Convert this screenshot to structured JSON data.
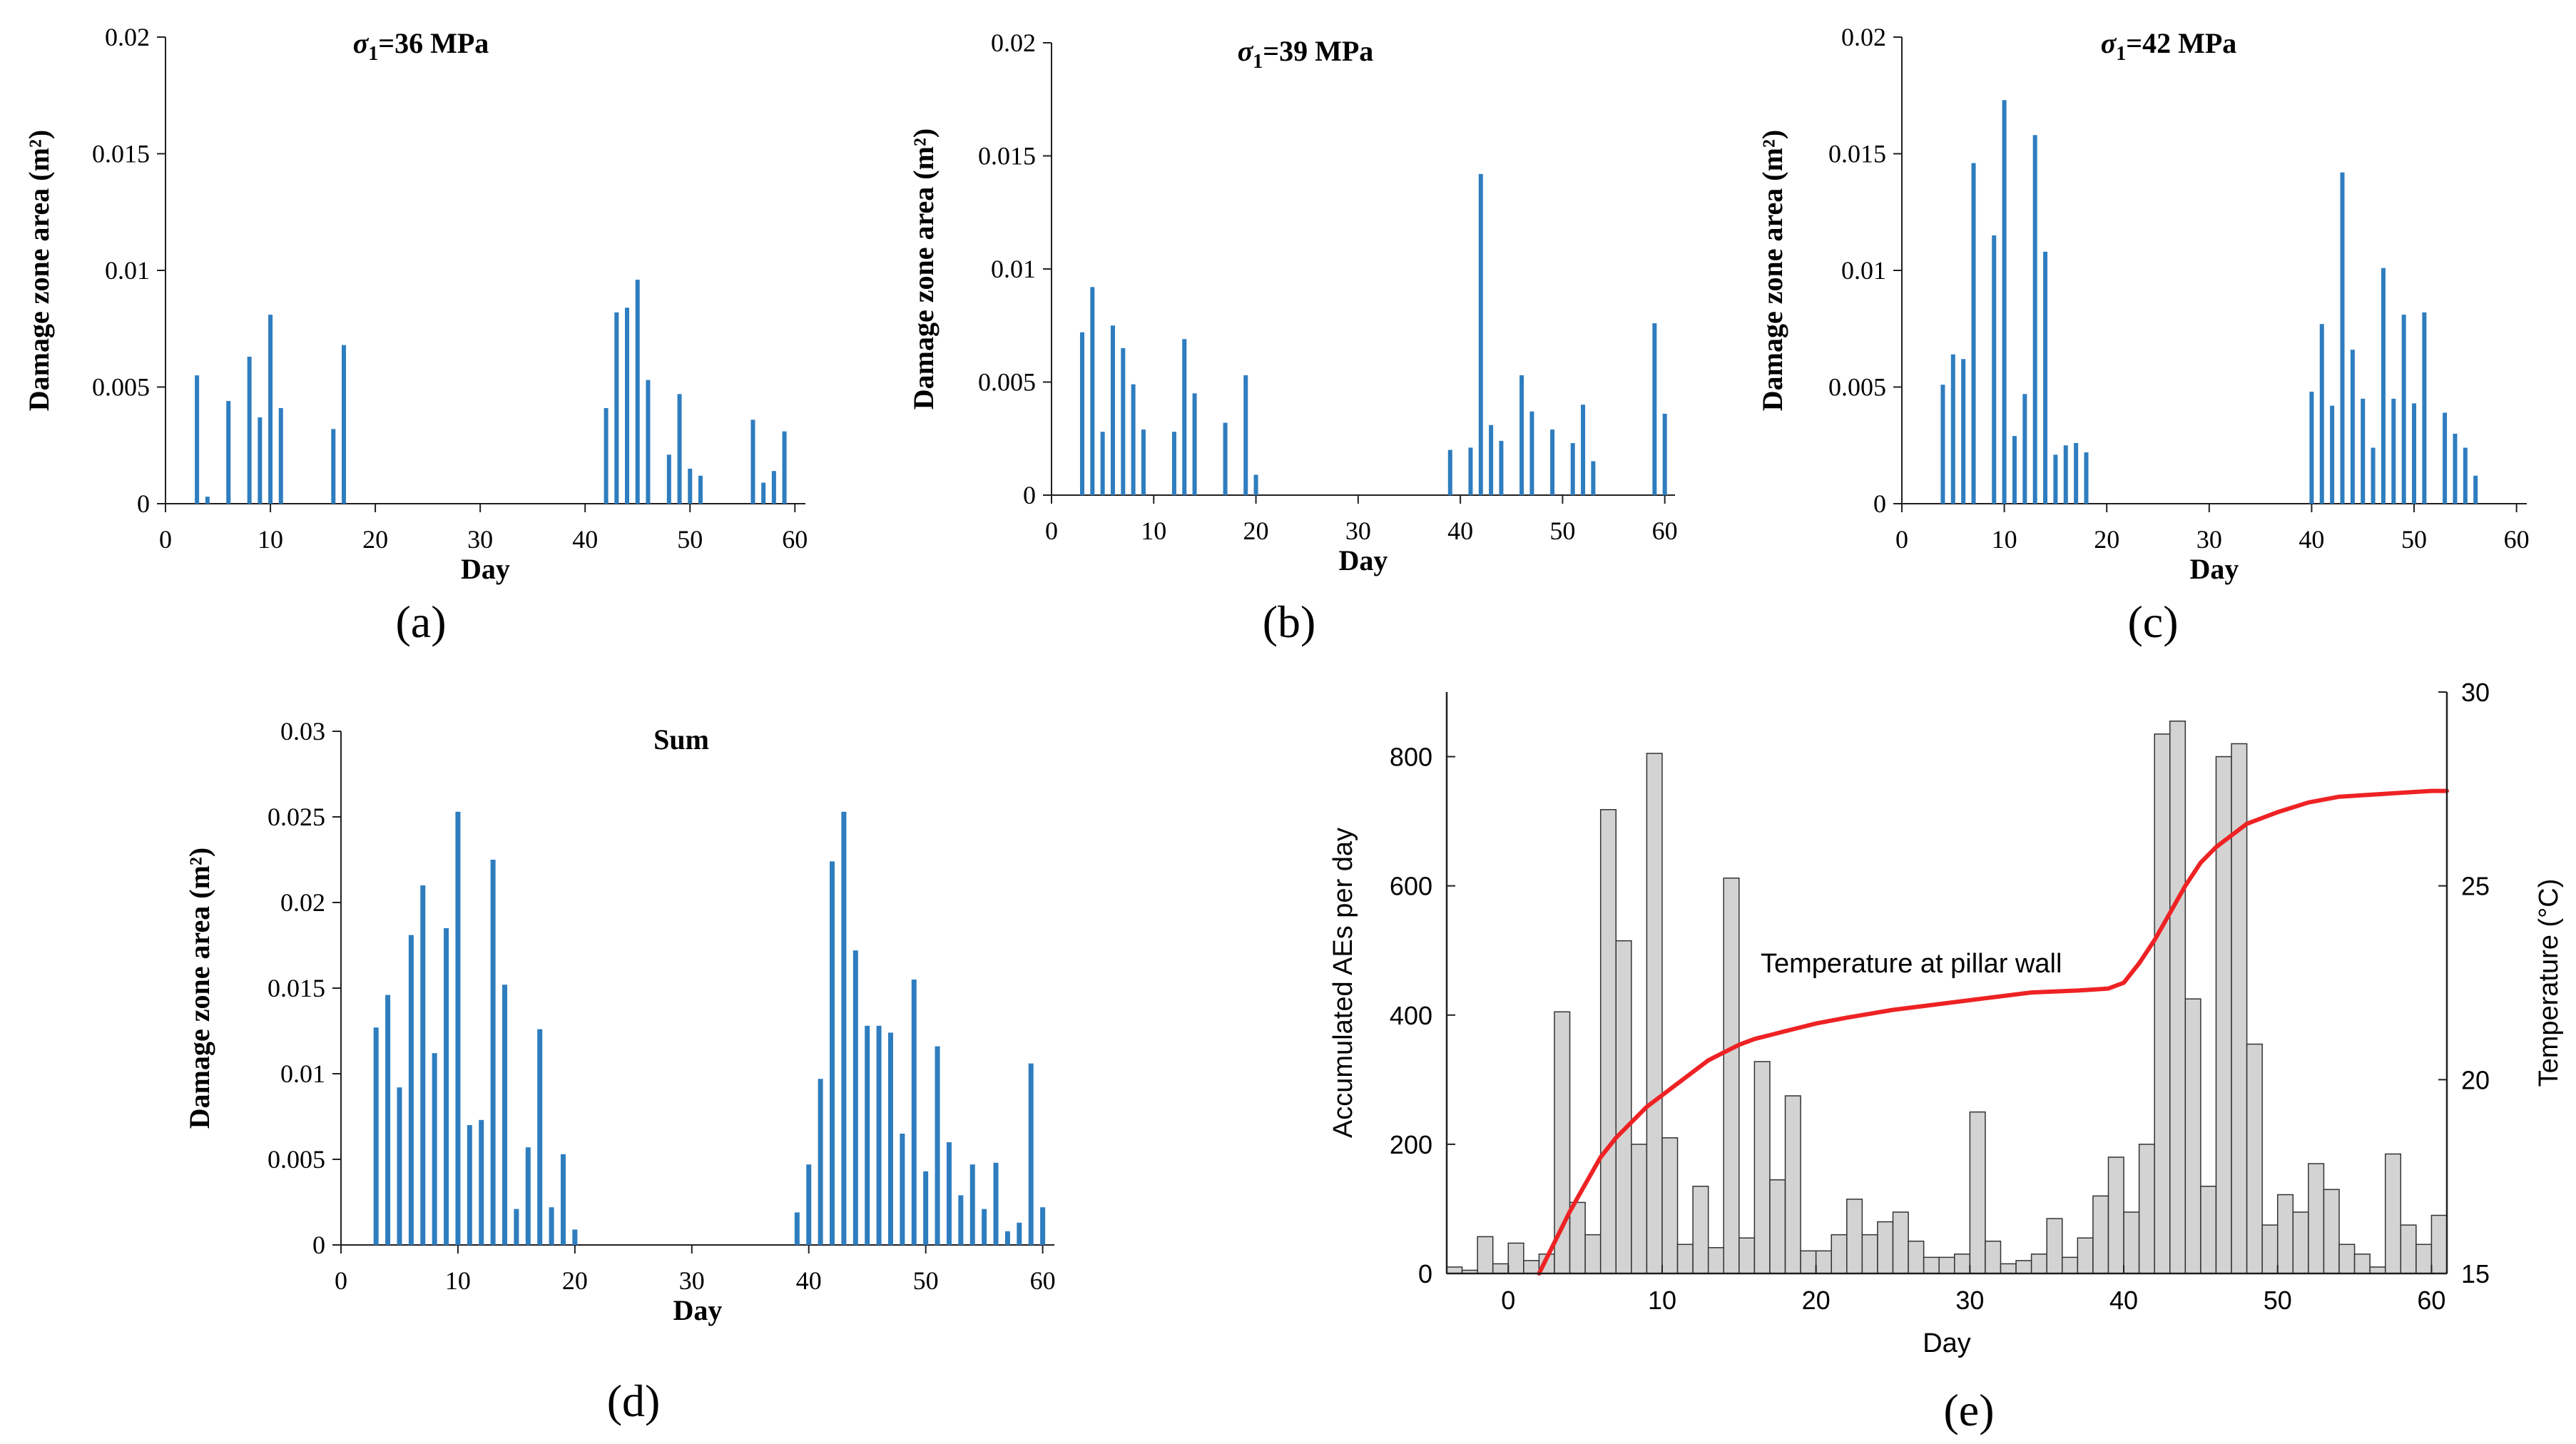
{
  "colors": {
    "bar_blue": "#2e7dbf",
    "ae_bar_fill": "#d3d3d3",
    "ae_bar_stroke": "#333333",
    "temp_line": "#ee2224",
    "axis": "#231f20"
  },
  "chart_data": [
    {
      "id": "a",
      "type": "bar",
      "panel_label": "(a)",
      "title_main": "σ",
      "title_sub": "1",
      "title_rest": "=36 MPa",
      "xlabel": "Day",
      "ylabel": "Damage zone area (m²)",
      "xlim": [
        0,
        61
      ],
      "ylim": [
        0,
        0.02
      ],
      "xticks": [
        0,
        10,
        20,
        30,
        40,
        50,
        60
      ],
      "yticks": [
        0,
        0.005,
        0.01,
        0.015,
        0.02
      ],
      "ytick_labels": [
        "0",
        "0.005",
        "0.01",
        "0.015",
        "0.02"
      ],
      "x": [
        3,
        4,
        6,
        8,
        9,
        10,
        11,
        16,
        17,
        42,
        43,
        44,
        45,
        46,
        48,
        49,
        50,
        51,
        56,
        57,
        58,
        59
      ],
      "values": [
        0.0055,
        0.0003,
        0.0044,
        0.0063,
        0.0037,
        0.0081,
        0.0041,
        0.0032,
        0.0068,
        0.0041,
        0.0082,
        0.0084,
        0.0096,
        0.0053,
        0.0021,
        0.0047,
        0.0015,
        0.0012,
        0.0036,
        0.0009,
        0.0014,
        0.0031
      ]
    },
    {
      "id": "b",
      "type": "bar",
      "panel_label": "(b)",
      "title_main": "σ",
      "title_sub": "1",
      "title_rest": "=39 MPa",
      "xlabel": "Day",
      "ylabel": "Damage zone area (m²)",
      "xlim": [
        0,
        61
      ],
      "ylim": [
        0,
        0.02
      ],
      "xticks": [
        0,
        10,
        20,
        30,
        40,
        50,
        60
      ],
      "yticks": [
        0,
        0.005,
        0.01,
        0.015,
        0.02
      ],
      "ytick_labels": [
        "0",
        "0.005",
        "0.01",
        "0.015",
        "0.02"
      ],
      "x": [
        3,
        4,
        5,
        6,
        7,
        8,
        9,
        12,
        13,
        14,
        17,
        19,
        20,
        39,
        41,
        42,
        43,
        44,
        46,
        47,
        49,
        51,
        52,
        53,
        59,
        60
      ],
      "values": [
        0.0072,
        0.0092,
        0.0028,
        0.0075,
        0.0065,
        0.0049,
        0.0029,
        0.0028,
        0.0069,
        0.0045,
        0.0032,
        0.0053,
        0.0009,
        0.002,
        0.0021,
        0.0142,
        0.0031,
        0.0024,
        0.0053,
        0.0037,
        0.0029,
        0.0023,
        0.004,
        0.0015,
        0.0076,
        0.0036
      ]
    },
    {
      "id": "c",
      "type": "bar",
      "panel_label": "(c)",
      "title_main": "σ",
      "title_sub": "1",
      "title_rest": "=42 MPa",
      "xlabel": "Day",
      "ylabel": "Damage zone area (m²)",
      "xlim": [
        0,
        61
      ],
      "ylim": [
        0,
        0.02
      ],
      "xticks": [
        0,
        10,
        20,
        30,
        40,
        50,
        60
      ],
      "yticks": [
        0,
        0.005,
        0.01,
        0.015,
        0.02
      ],
      "ytick_labels": [
        "0",
        "0.005",
        "0.01",
        "0.015",
        "0.02"
      ],
      "x": [
        4,
        5,
        6,
        7,
        9,
        10,
        11,
        12,
        13,
        14,
        15,
        16,
        17,
        18,
        40,
        41,
        42,
        43,
        44,
        45,
        46,
        47,
        48,
        49,
        50,
        51,
        53,
        54,
        55,
        56
      ],
      "values": [
        0.0051,
        0.0064,
        0.0062,
        0.0146,
        0.0115,
        0.0173,
        0.0029,
        0.0047,
        0.0158,
        0.0108,
        0.0021,
        0.0025,
        0.0026,
        0.0022,
        0.0048,
        0.0077,
        0.0042,
        0.0142,
        0.0066,
        0.0045,
        0.0024,
        0.0101,
        0.0045,
        0.0081,
        0.0043,
        0.0082,
        0.0039,
        0.003,
        0.0024,
        0.0012
      ]
    },
    {
      "id": "d",
      "type": "bar",
      "panel_label": "(d)",
      "title_main": "Sum",
      "title_sub": "",
      "title_rest": "",
      "xlabel": "Day",
      "ylabel": "Damage zone area (m²)",
      "xlim": [
        0,
        61
      ],
      "ylim": [
        0,
        0.03
      ],
      "xticks": [
        0,
        10,
        20,
        30,
        40,
        50,
        60
      ],
      "yticks": [
        0,
        0.005,
        0.01,
        0.015,
        0.02,
        0.025,
        0.03
      ],
      "ytick_labels": [
        "0",
        "0.005",
        "0.01",
        "0.015",
        "0.02",
        "0.025",
        "0.03"
      ],
      "x": [
        3,
        4,
        5,
        6,
        7,
        8,
        9,
        10,
        11,
        12,
        13,
        14,
        15,
        16,
        17,
        18,
        19,
        20,
        39,
        40,
        41,
        42,
        43,
        44,
        45,
        46,
        47,
        48,
        49,
        50,
        51,
        52,
        53,
        54,
        55,
        56,
        57,
        58,
        59,
        60
      ],
      "values": [
        0.0127,
        0.0146,
        0.0092,
        0.0181,
        0.021,
        0.0112,
        0.0185,
        0.0253,
        0.007,
        0.0073,
        0.0225,
        0.0152,
        0.0021,
        0.0057,
        0.0126,
        0.0022,
        0.0053,
        0.0009,
        0.0019,
        0.0047,
        0.0097,
        0.0224,
        0.0253,
        0.0172,
        0.0128,
        0.0128,
        0.0124,
        0.0065,
        0.0155,
        0.0043,
        0.0116,
        0.006,
        0.0029,
        0.0047,
        0.0021,
        0.0048,
        0.0008,
        0.0013,
        0.0106,
        0.0022
      ]
    },
    {
      "id": "e",
      "type": "bar+line",
      "panel_label": "(e)",
      "xlabel": "Day",
      "ylabel": "Accumulated AEs per day",
      "y2label": "Temperature (°C)",
      "xlim": [
        -4,
        61
      ],
      "ylim": [
        0,
        900
      ],
      "y2lim": [
        15,
        30
      ],
      "xticks": [
        0,
        10,
        20,
        30,
        40,
        50,
        60
      ],
      "yticks": [
        0,
        200,
        400,
        600,
        800
      ],
      "y2ticks": [
        15,
        20,
        25,
        30
      ],
      "annotation": "Temperature at pillar wall",
      "series": [
        {
          "name": "Accumulated AEs per day",
          "type": "bar",
          "x": [
            -4,
            -3,
            -2,
            -1,
            0,
            1,
            2,
            3,
            4,
            5,
            6,
            7,
            8,
            9,
            10,
            11,
            12,
            13,
            14,
            15,
            16,
            17,
            18,
            19,
            20,
            21,
            22,
            23,
            24,
            25,
            26,
            27,
            28,
            29,
            30,
            31,
            32,
            33,
            34,
            35,
            36,
            37,
            38,
            39,
            40,
            41,
            42,
            43,
            44,
            45,
            46,
            47,
            48,
            49,
            50,
            51,
            52,
            53,
            54,
            55,
            56,
            57,
            58,
            59,
            60
          ],
          "values": [
            10,
            5,
            57,
            15,
            47,
            20,
            30,
            405,
            110,
            60,
            718,
            515,
            200,
            805,
            210,
            45,
            135,
            40,
            612,
            55,
            328,
            145,
            275,
            35,
            35,
            60,
            115,
            60,
            80,
            95,
            50,
            25,
            25,
            30,
            250,
            50,
            15,
            20,
            30,
            85,
            25,
            55,
            120,
            180,
            95,
            200,
            835,
            855,
            425,
            135,
            800,
            820,
            355,
            75,
            122,
            95,
            170,
            130,
            45,
            30,
            10,
            185,
            75,
            45,
            90
          ]
        },
        {
          "name": "Temperature at pillar wall",
          "type": "line",
          "axis": "y2",
          "x": [
            2,
            3,
            4,
            5,
            6,
            7,
            8,
            9,
            10,
            11,
            12,
            13,
            14,
            15,
            16,
            17,
            18,
            19,
            20,
            22,
            25,
            28,
            31,
            34,
            37,
            39,
            40,
            41,
            42,
            43,
            44,
            45,
            46,
            47,
            48,
            50,
            52,
            54,
            56,
            58,
            60,
            61
          ],
          "values": [
            15,
            15.8,
            16.6,
            17.3,
            18.0,
            18.5,
            18.9,
            19.3,
            19.6,
            19.9,
            20.2,
            20.5,
            20.7,
            20.9,
            21.05,
            21.15,
            21.25,
            21.35,
            21.45,
            21.6,
            21.8,
            21.95,
            22.1,
            22.25,
            22.3,
            22.35,
            22.5,
            23.0,
            23.6,
            24.3,
            25.0,
            25.6,
            26.0,
            26.3,
            26.6,
            26.9,
            27.15,
            27.3,
            27.35,
            27.4,
            27.45,
            27.45
          ]
        }
      ]
    }
  ]
}
